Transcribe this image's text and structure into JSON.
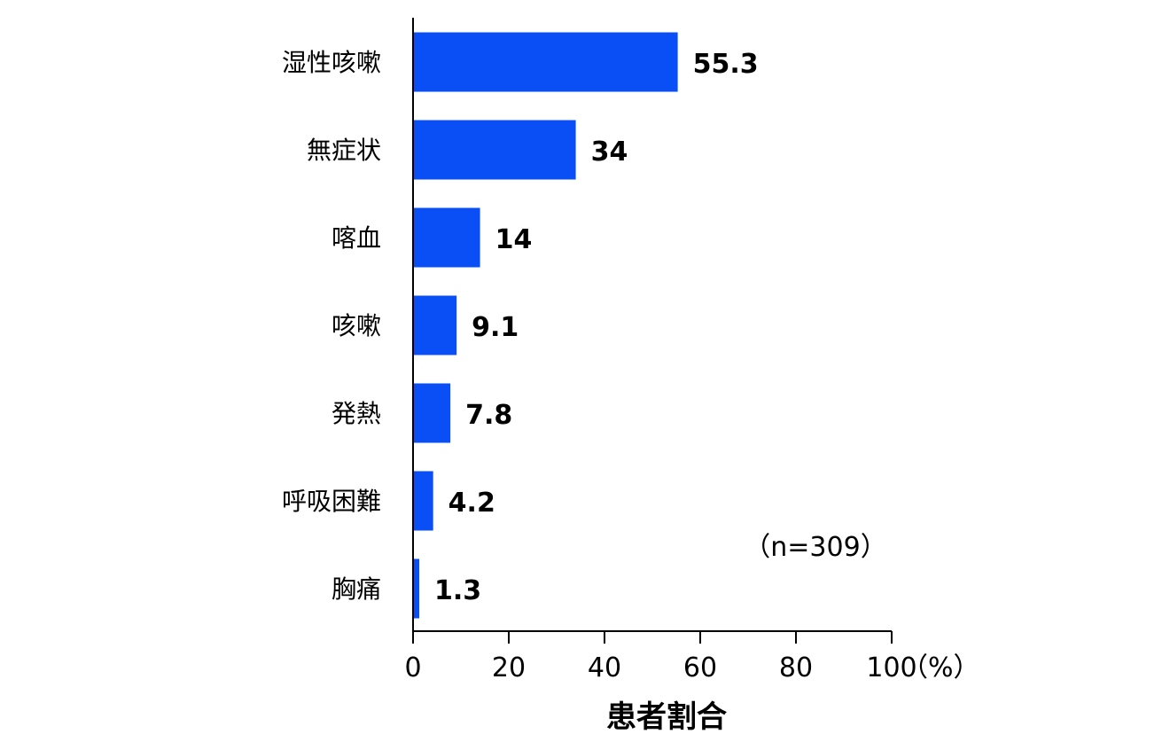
{
  "chart_data": {
    "type": "bar",
    "orientation": "horizontal",
    "categories": [
      "湿性咳嗽",
      "無症状",
      "喀血",
      "咳嗽",
      "発熱",
      "呼吸困難",
      "胸痛"
    ],
    "values": [
      55.3,
      34,
      14,
      9.1,
      7.8,
      4.2,
      1.3
    ],
    "value_labels": [
      "55.3",
      "34",
      "14",
      "9.1",
      "7.8",
      "4.2",
      "1.3"
    ],
    "xlim": [
      0,
      100
    ],
    "xticks": [
      0,
      20,
      40,
      60,
      80,
      100
    ],
    "xtick_labels": [
      "0",
      "20",
      "40",
      "60",
      "80",
      "100"
    ],
    "xunit": "（%）",
    "xlabel": "患者割合",
    "annotation": "（n=309）",
    "bar_color": "#0a4ff5",
    "grid": false,
    "legend": "none"
  }
}
